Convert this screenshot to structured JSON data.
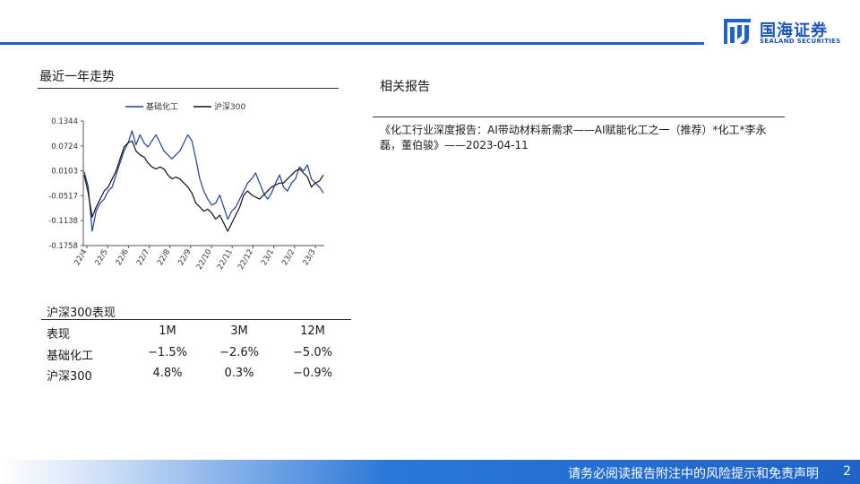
{
  "brand": {
    "name_cn": "国海证券",
    "name_en": "SEALAND SECURITIES",
    "color": "#1f63c6"
  },
  "trend": {
    "title": "最近一年走势"
  },
  "chart_data": {
    "type": "line",
    "legend_position": "top",
    "grid": false,
    "ylim": [
      -0.1758,
      0.1344
    ],
    "yticks": [
      "0.1344",
      "0.0724",
      "0.0103",
      "-0.0517",
      "-0.1138",
      "-0.1758"
    ],
    "xticks": [
      "22/4",
      "22/5",
      "22/6",
      "22/7",
      "22/8",
      "22/9",
      "22/10",
      "22/11",
      "22/12",
      "23/1",
      "23/2",
      "23/3"
    ],
    "series": [
      {
        "name": "基础化工",
        "color": "#1f3f99",
        "values": [
          0.008,
          -0.03,
          -0.14,
          -0.09,
          -0.07,
          -0.06,
          -0.04,
          -0.03,
          0.0,
          0.03,
          0.06,
          0.08,
          0.11,
          0.075,
          0.1,
          0.08,
          0.07,
          0.085,
          0.1,
          0.08,
          0.06,
          0.05,
          0.04,
          0.05,
          0.06,
          0.08,
          0.1,
          0.085,
          0.04,
          -0.01,
          -0.04,
          -0.06,
          -0.075,
          -0.07,
          -0.05,
          -0.08,
          -0.11,
          -0.09,
          -0.08,
          -0.06,
          -0.04,
          -0.02,
          -0.01,
          0.005,
          -0.02,
          -0.045,
          -0.06,
          -0.045,
          -0.02,
          0.0,
          -0.03,
          -0.04,
          -0.02,
          -0.01,
          0.02,
          0.01,
          0.025,
          -0.01,
          -0.02,
          -0.03,
          -0.045
        ]
      },
      {
        "name": "沪深300",
        "color": "#111111",
        "values": [
          0.0,
          -0.045,
          -0.105,
          -0.08,
          -0.06,
          -0.04,
          -0.03,
          -0.01,
          0.01,
          0.04,
          0.07,
          0.08,
          0.085,
          0.06,
          0.05,
          0.045,
          0.03,
          0.02,
          0.015,
          0.02,
          0.015,
          0.0,
          -0.01,
          -0.005,
          -0.01,
          -0.02,
          -0.03,
          -0.045,
          -0.07,
          -0.08,
          -0.09,
          -0.085,
          -0.095,
          -0.11,
          -0.1,
          -0.12,
          -0.14,
          -0.12,
          -0.1,
          -0.08,
          -0.05,
          -0.04,
          -0.05,
          -0.055,
          -0.06,
          -0.05,
          -0.04,
          -0.03,
          -0.025,
          -0.02,
          -0.02,
          -0.01,
          0.0,
          0.01,
          0.015,
          0.005,
          -0.005,
          -0.03,
          -0.02,
          -0.015,
          0.0
        ]
      }
    ]
  },
  "performance": {
    "title": "沪深300表现",
    "headers": [
      "表现",
      "1M",
      "3M",
      "12M"
    ],
    "rows": [
      [
        "基础化工",
        "−1.5%",
        "−2.6%",
        "−5.0%"
      ],
      [
        "沪深300",
        "4.8%",
        "0.3%",
        "−0.9%"
      ]
    ]
  },
  "related": {
    "title": "相关报告",
    "text": "《化工行业深度报告：AI带动材料新需求——AI赋能化工之一（推荐）*化工*李永磊，董伯骏》——2023-04-11"
  },
  "footer": {
    "disclaimer": "请务必阅读报告附注中的风险提示和免责声明",
    "page": "2"
  }
}
